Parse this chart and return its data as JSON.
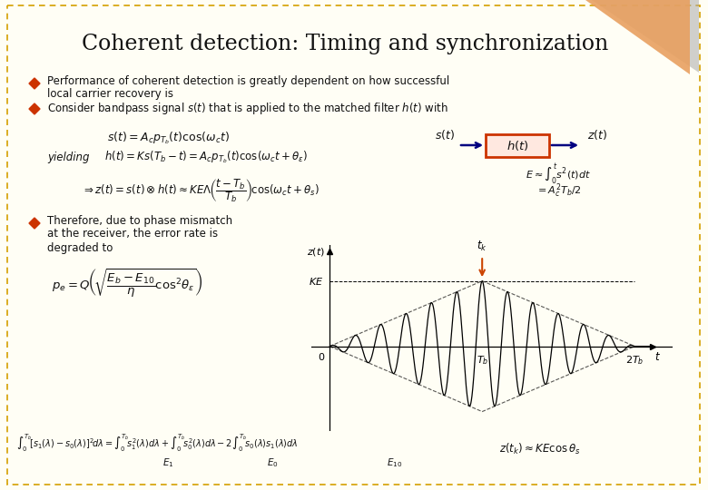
{
  "title": "Coherent detection: Timing and synchronization",
  "title_fontsize": 17,
  "bg_color": "#FFFEF5",
  "border_color": "#D4A000",
  "triangle_fill": "#E8A060",
  "triangle_shadow": "#999999",
  "diamond_color": "#CC3300",
  "text_color": "#111111",
  "bullet1_line1": "Performance of coherent detection is greatly dependent on how successful",
  "bullet1_line2": "local carrier recovery is",
  "bullet2_text": "Consider bandpass signal s(t) that is applied to the matched filter h(t) with",
  "formula1": "$s(t) = A_c p_{T_b}(t)\\cos(\\omega_c t)$",
  "yielding_label": "yielding",
  "formula2": "$h(t) = Ks(T_b-t) = A_c p_{T_b}(t)\\cos(\\omega_c t + \\theta_\\varepsilon)$",
  "formula3": "$\\Rightarrow z(t) = s(t)\\otimes h(t) \\approx KE\\Lambda\\!\\left(\\dfrac{t-T_b}{T_b}\\right)\\!\\cos\\!\\left(\\omega_c t+\\theta_s\\right)$",
  "energy1": "$E \\approx \\int_0^t s^2(t)dt$",
  "energy2": "$= A_c^2 T_b/2$",
  "bullet3_line1": "Therefore, due to phase mismatch",
  "bullet3_line2": "at the receiver, the error rate is",
  "bullet3_line3": "degraded to",
  "pe_formula": "$p_e = Q\\!\\left(\\!\\sqrt{\\dfrac{E_b - E_{10}}{\\eta}\\cos^2\\!\\theta_\\varepsilon}\\right)$",
  "bottom_integral": "$\\int_0^{T_b}\\!\\left[s_1(\\lambda)-s_0(\\lambda)\\right]^2\\!d\\lambda = \\int_0^{T_b}\\!s_1^2(\\lambda)d\\lambda + \\int_0^{T_b}\\!s_0^2(\\lambda)d\\lambda - 2\\int_0^{T_b}\\!s_0(\\lambda)s_1(\\lambda)d\\lambda$",
  "E1_label": "$E_1$",
  "E0_label": "$E_0$",
  "E10_label": "$E_{10}$",
  "ztk_formula": "$z(t_k) \\approx KE\\cos\\theta_s$",
  "box_edge_color": "#CC3300",
  "box_fill_color": "#FFE8E0",
  "arrow_color": "#000080",
  "tk_arrow_color": "#CC4400",
  "plot_signal_freq": 6,
  "plot_Tb": 1.0
}
